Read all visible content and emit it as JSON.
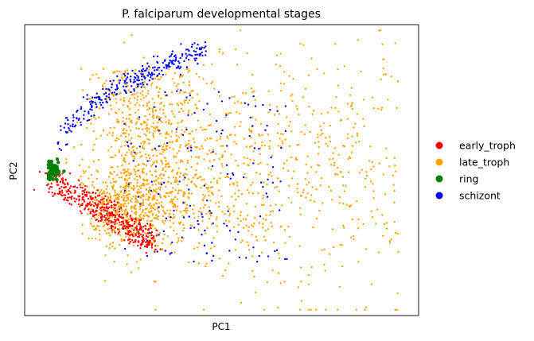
{
  "chart_data": {
    "type": "scatter",
    "title": "P. falciparum developmental stages",
    "xlabel": "PC1",
    "ylabel": "PC2",
    "xticks": [],
    "yticks": [],
    "grid": false,
    "legend_position": "right",
    "xlim": [
      0,
      100
    ],
    "ylim": [
      0,
      100
    ],
    "series": [
      {
        "name": "early_troph",
        "color": "#ff0000",
        "count": 450
      },
      {
        "name": "late_troph",
        "color": "#ffa500",
        "count": 1850
      },
      {
        "name": "ring",
        "color": "#008000",
        "count": 80
      },
      {
        "name": "schizont",
        "color": "#0000ff",
        "count": 430
      }
    ]
  }
}
